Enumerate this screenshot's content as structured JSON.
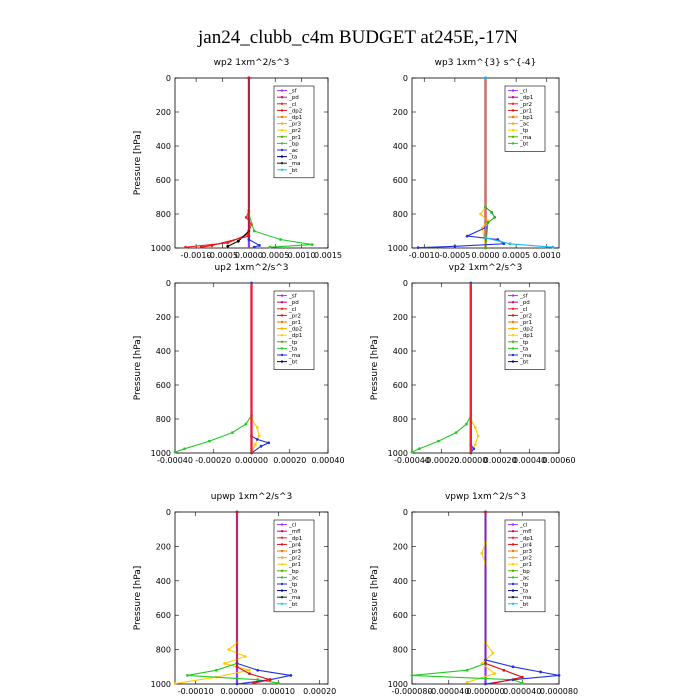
{
  "title": "jan24_clubb_c4m  BUDGET at245E,-17N",
  "chart_data": [
    {
      "type": "line",
      "title": "wp2   1xm^2/s^3",
      "ylabel": "Pressure  [hPa]",
      "xlim": [
        -0.0014,
        0.0015
      ],
      "ylim": [
        1000,
        0
      ],
      "xticks": [
        -0.001,
        -0.0005,
        0.0,
        0.0005,
        0.001,
        0.0015
      ],
      "xtick_labels": [
        "-0.0010",
        "-0.0005",
        "0.0000",
        "0.0005",
        "0.0010",
        "0.0015"
      ],
      "yticks": [
        0,
        200,
        400,
        600,
        800,
        1000
      ],
      "legend": [
        "_bt",
        "_ma",
        "_ta",
        "_ac",
        "_bp",
        "_pr1",
        "_pr2",
        "_pr3",
        "_dp1",
        "_dp2",
        "_cl",
        "_pd",
        "_sf"
      ],
      "series": [
        {
          "name": "_pd",
          "color": "#9b30ff",
          "points": [
            [
              0,
              0
            ],
            [
              0,
              1000
            ]
          ]
        },
        {
          "name": "_cl",
          "color": "#ee2222",
          "points": [
            [
              0,
              0
            ],
            [
              0,
              780
            ],
            [
              -5e-05,
              820
            ],
            [
              5e-05,
              860
            ],
            [
              -2e-05,
              920
            ],
            [
              -0.0004,
              970
            ],
            [
              -0.0012,
              995
            ]
          ]
        },
        {
          "name": "_bp",
          "color": "#22cc22",
          "points": [
            [
              0,
              0
            ],
            [
              0,
              800
            ],
            [
              0.0001,
              900
            ],
            [
              0.0006,
              950
            ],
            [
              0.0012,
              980
            ],
            [
              0.0004,
              995
            ]
          ]
        },
        {
          "name": "_ta",
          "color": "#000000",
          "points": [
            [
              0,
              0
            ],
            [
              0,
              900
            ],
            [
              -0.0002,
              960
            ],
            [
              -0.0004,
              990
            ]
          ]
        },
        {
          "name": "_ma",
          "color": "#2233dd",
          "points": [
            [
              0,
              0
            ],
            [
              0,
              950
            ],
            [
              0.0002,
              985
            ],
            [
              0.0001,
              995
            ]
          ]
        },
        {
          "name": "_dp1",
          "color": "#dd1111",
          "points": [
            [
              0,
              0
            ],
            [
              0,
              930
            ],
            [
              -0.0007,
              985
            ],
            [
              -0.0009,
              995
            ]
          ]
        }
      ]
    },
    {
      "type": "line",
      "title": "wp3   1xm^{3} s^{-4}",
      "ylabel": "",
      "xlim": [
        -0.0012,
        0.0012
      ],
      "ylim": [
        1000,
        0
      ],
      "xticks": [
        -0.001,
        -0.0005,
        0.0,
        0.0005,
        0.001
      ],
      "xtick_labels": [
        "-0.0010",
        "-0.0005",
        "0.0000",
        "0.0005",
        "0.0010"
      ],
      "yticks": [
        0,
        200,
        400,
        600,
        800,
        1000
      ],
      "legend": [
        "_bt",
        "_ma",
        "_tp",
        "_ac",
        "_bp1",
        "_pr1",
        "_pr2",
        "_dp1",
        "_cl"
      ],
      "series": [
        {
          "name": "_cl",
          "color": "#ee2222",
          "points": [
            [
              0,
              0
            ],
            [
              0,
              1000
            ]
          ]
        },
        {
          "name": "_pr2",
          "color": "#ffcc00",
          "points": [
            [
              0,
              0
            ],
            [
              0,
              760
            ],
            [
              -8e-05,
              800
            ],
            [
              4e-05,
              840
            ],
            [
              -5e-05,
              880
            ],
            [
              0,
              1000
            ]
          ]
        },
        {
          "name": "_ac",
          "color": "#22aa22",
          "points": [
            [
              0,
              0
            ],
            [
              0,
              760
            ],
            [
              0.0001,
              790
            ],
            [
              0.00015,
              820
            ],
            [
              4e-05,
              850
            ],
            [
              0,
              1000
            ]
          ]
        },
        {
          "name": "_tp",
          "color": "#2233dd",
          "points": [
            [
              0,
              0
            ],
            [
              0,
              880
            ],
            [
              -0.0003,
              930
            ],
            [
              0.0002,
              950
            ],
            [
              0.0003,
              975
            ],
            [
              -0.0005,
              990
            ],
            [
              -0.0011,
              998
            ]
          ]
        },
        {
          "name": "_ma",
          "color": "#11bbee",
          "points": [
            [
              0,
              0
            ],
            [
              0,
              940
            ],
            [
              0.0004,
              975
            ],
            [
              0.0011,
              995
            ]
          ]
        }
      ]
    },
    {
      "type": "line",
      "title": "up2   1xm^2/s^3",
      "ylabel": "Pressure  [hPa]",
      "xlim": [
        -0.0004,
        0.0004
      ],
      "ylim": [
        1000,
        0
      ],
      "xticks": [
        -0.0004,
        -0.0002,
        0.0,
        0.0002,
        0.0004
      ],
      "xtick_labels": [
        "-0.00040",
        "-0.00020",
        "0.00000",
        "0.00020",
        "0.00040"
      ],
      "yticks": [
        0,
        200,
        400,
        600,
        800,
        1000
      ],
      "legend": [
        "_bt",
        "_ma",
        "_ta",
        "_tp",
        "_dp1",
        "_dp2",
        "_pr1",
        "_pr2",
        "_cl",
        "_pd",
        "_sf"
      ],
      "series": [
        {
          "name": "_pd",
          "color": "#9b30ff",
          "points": [
            [
              0,
              0
            ],
            [
              0,
              1000
            ]
          ]
        },
        {
          "name": "_dp1",
          "color": "#22cc22",
          "points": [
            [
              0,
              0
            ],
            [
              0,
              780
            ],
            [
              -3e-05,
              830
            ],
            [
              -0.0001,
              880
            ],
            [
              -0.00022,
              930
            ],
            [
              -0.00035,
              975
            ],
            [
              -0.0004,
              995
            ]
          ]
        },
        {
          "name": "_pr2",
          "color": "#ffcc00",
          "points": [
            [
              0,
              0
            ],
            [
              0,
              800
            ],
            [
              3e-05,
              850
            ],
            [
              4e-05,
              900
            ],
            [
              2e-05,
              950
            ],
            [
              0,
              1000
            ]
          ]
        },
        {
          "name": "_tp",
          "color": "#2233dd",
          "points": [
            [
              0,
              0
            ],
            [
              0,
              900
            ],
            [
              3e-05,
              920
            ],
            [
              9e-05,
              940
            ],
            [
              5e-05,
              960
            ],
            [
              0,
              1000
            ]
          ]
        },
        {
          "name": "_cl",
          "color": "#ee2222",
          "points": [
            [
              0,
              0
            ],
            [
              0,
              1000
            ]
          ]
        }
      ]
    },
    {
      "type": "line",
      "title": "vp2   1xm^2/s^3",
      "ylabel": "Pressure  [hPa]",
      "xlim": [
        -0.0004,
        0.0006
      ],
      "ylim": [
        1000,
        0
      ],
      "xticks": [
        -0.0004,
        -0.0002,
        0.0,
        0.0002,
        0.0004,
        0.0006
      ],
      "xtick_labels": [
        "-0.00040",
        "-0.00020",
        "0.00000",
        "0.00020",
        "0.00040",
        "0.00060"
      ],
      "yticks": [
        0,
        200,
        400,
        600,
        800,
        1000
      ],
      "legend": [
        "_bt",
        "_ma",
        "_ta",
        "_tp",
        "_dp1",
        "_dp2",
        "_pr1",
        "_pr2",
        "_cl",
        "_pd",
        "_sf"
      ],
      "series": [
        {
          "name": "_pd",
          "color": "#9b30ff",
          "points": [
            [
              0,
              0
            ],
            [
              0,
              1000
            ]
          ]
        },
        {
          "name": "_dp1",
          "color": "#22cc22",
          "points": [
            [
              0,
              0
            ],
            [
              0,
              780
            ],
            [
              -3e-05,
              830
            ],
            [
              -0.0001,
              880
            ],
            [
              -0.00022,
              930
            ],
            [
              -0.00035,
              975
            ],
            [
              -0.0004,
              995
            ]
          ]
        },
        {
          "name": "_pr2",
          "color": "#ffcc00",
          "points": [
            [
              0,
              0
            ],
            [
              0,
              800
            ],
            [
              3e-05,
              850
            ],
            [
              5e-05,
              900
            ],
            [
              3e-05,
              950
            ],
            [
              0,
              1000
            ]
          ]
        },
        {
          "name": "_tp",
          "color": "#2233dd",
          "points": [
            [
              0,
              0
            ],
            [
              0,
              950
            ],
            [
              2e-05,
              975
            ],
            [
              0,
              1000
            ]
          ]
        },
        {
          "name": "_cl",
          "color": "#ee2222",
          "points": [
            [
              0,
              0
            ],
            [
              0,
              1000
            ]
          ]
        }
      ]
    },
    {
      "type": "line",
      "title": "upwp   1xm^2/s^3",
      "ylabel": "Pressure  [hPa]",
      "xlim": [
        -0.00015,
        0.00022
      ],
      "ylim": [
        1000,
        0
      ],
      "xticks": [
        -0.0001,
        0.0,
        0.0001,
        0.0002
      ],
      "xtick_labels": [
        "-0.00010",
        "0.00000",
        "0.00010",
        "0.00020"
      ],
      "yticks": [
        0,
        200,
        400,
        600,
        800,
        1000
      ],
      "legend": [
        "_bt",
        "_ma",
        "_ta",
        "_tp",
        "_ac",
        "_bp",
        "_pr1",
        "_pr2",
        "_pr3",
        "_pr4",
        "_dp1",
        "_mfl",
        "_cl"
      ],
      "series": [
        {
          "name": "_cl",
          "color": "#9b30ff",
          "points": [
            [
              0,
              0
            ],
            [
              0,
              1000
            ]
          ]
        },
        {
          "name": "_pr2",
          "color": "#ffcc00",
          "points": [
            [
              0,
              0
            ],
            [
              0,
              760
            ],
            [
              -2e-05,
              800
            ],
            [
              2e-05,
              840
            ],
            [
              -3e-05,
              880
            ],
            [
              3e-05,
              920
            ],
            [
              -5e-05,
              960
            ],
            [
              -0.00015,
              998
            ]
          ]
        },
        {
          "name": "_bp",
          "color": "#22cc22",
          "points": [
            [
              0,
              0
            ],
            [
              0,
              880
            ],
            [
              -5e-05,
              920
            ],
            [
              -0.00012,
              950
            ],
            [
              5e-05,
              975
            ],
            [
              0.0001,
              995
            ]
          ]
        },
        {
          "name": "_tp",
          "color": "#2233dd",
          "points": [
            [
              0,
              0
            ],
            [
              0,
              880
            ],
            [
              5e-05,
              920
            ],
            [
              0.00013,
              950
            ],
            [
              8e-05,
              975
            ],
            [
              0,
              1000
            ]
          ]
        },
        {
          "name": "_dp1",
          "color": "#dd1111",
          "points": [
            [
              0,
              0
            ],
            [
              0,
              900
            ],
            [
              3e-05,
              940
            ],
            [
              8e-05,
              975
            ],
            [
              4e-05,
              995
            ]
          ]
        }
      ]
    },
    {
      "type": "line",
      "title": "vpwp   1xm^2/s^3",
      "ylabel": "Pressure  [hPa]",
      "xlim": [
        -8e-05,
        8e-05
      ],
      "ylim": [
        1000,
        0
      ],
      "xticks": [
        -8e-05,
        -4e-05,
        0.0,
        4e-05,
        8e-05
      ],
      "xtick_labels": [
        "-0.000080",
        "-0.000040",
        "0.000000",
        "0.000040",
        "0.000080"
      ],
      "yticks": [
        0,
        200,
        400,
        600,
        800,
        1000
      ],
      "legend": [
        "_bt",
        "_ma",
        "_ta",
        "_tp",
        "_ac",
        "_bp",
        "_pr1",
        "_pr2",
        "_pr3",
        "_pr4",
        "_dp1",
        "_mfl",
        "_cl"
      ],
      "series": [
        {
          "name": "_cl",
          "color": "#9b30ff",
          "points": [
            [
              0,
              0
            ],
            [
              0,
              1000
            ]
          ]
        },
        {
          "name": "_pr2",
          "color": "#ffcc00",
          "points": [
            [
              0,
              0
            ],
            [
              0,
              180
            ],
            [
              -4e-06,
              240
            ],
            [
              0,
              300
            ],
            [
              0,
              760
            ],
            [
              8e-06,
              820
            ],
            [
              -4e-06,
              880
            ],
            [
              1e-05,
              940
            ],
            [
              -2e-05,
              990
            ]
          ]
        },
        {
          "name": "_bp",
          "color": "#22cc22",
          "points": [
            [
              0,
              0
            ],
            [
              0,
              880
            ],
            [
              -2e-05,
              920
            ],
            [
              -8e-05,
              950
            ],
            [
              3e-05,
              975
            ],
            [
              4e-05,
              995
            ]
          ]
        },
        {
          "name": "_tp",
          "color": "#2233dd",
          "points": [
            [
              0,
              0
            ],
            [
              0,
              860
            ],
            [
              3e-05,
              900
            ],
            [
              6e-05,
              930
            ],
            [
              8e-05,
              950
            ],
            [
              3e-05,
              975
            ],
            [
              0,
              1000
            ]
          ]
        },
        {
          "name": "_dp1",
          "color": "#dd1111",
          "points": [
            [
              0,
              0
            ],
            [
              0,
              880
            ],
            [
              2e-05,
              920
            ],
            [
              4e-05,
              960
            ],
            [
              1e-05,
              995
            ]
          ]
        }
      ]
    }
  ]
}
